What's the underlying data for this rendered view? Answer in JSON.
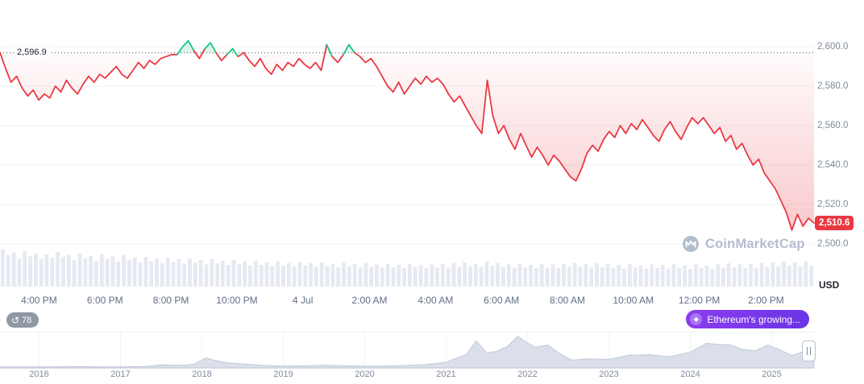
{
  "watermark": {
    "text": "CoinMarketCap"
  },
  "axis": {
    "unit_label": "USD",
    "y_ticks": [
      "2,600.0",
      "2,580.0",
      "2,560.0",
      "2,540.0",
      "2,520.0",
      "2,500.0"
    ],
    "x_ticks": [
      {
        "label": "4:00 PM",
        "pos": 0.048
      },
      {
        "label": "6:00 PM",
        "pos": 0.129
      },
      {
        "label": "8:00 PM",
        "pos": 0.21
      },
      {
        "label": "10:00 PM",
        "pos": 0.291
      },
      {
        "label": "4 Jul",
        "pos": 0.372
      },
      {
        "label": "2:00 AM",
        "pos": 0.454
      },
      {
        "label": "4:00 AM",
        "pos": 0.535
      },
      {
        "label": "6:00 AM",
        "pos": 0.616
      },
      {
        "label": "8:00 AM",
        "pos": 0.697
      },
      {
        "label": "10:00 AM",
        "pos": 0.778
      },
      {
        "label": "12:00 PM",
        "pos": 0.859
      },
      {
        "label": "2:00 PM",
        "pos": 0.941
      }
    ]
  },
  "open_line": {
    "label": "2,596.9"
  },
  "price_badge": {
    "label": "2,510.6"
  },
  "badges": {
    "history_count": "78",
    "news_text": "Ethereum's growing..."
  },
  "colors": {
    "down": "#ea3943",
    "up": "#16c784",
    "grid": "#eff2f5",
    "axis_text": "#808a9d",
    "volume": "#e6e9f2",
    "nav_fill": "#dadfe9",
    "nav_stroke": "#c2c8d8",
    "dotted_line": "#474d59"
  },
  "chart_data": {
    "type": "line",
    "title": "ETH/USD 24-hour price chart",
    "ylabel": "USD",
    "ylim": [
      2496,
      2610
    ],
    "y_ticks": [
      2600,
      2580,
      2560,
      2540,
      2520,
      2500
    ],
    "open_price": 2596.9,
    "last_price": 2510.6,
    "x_range_labels": [
      "4:00 PM",
      "2:00 PM"
    ],
    "series": [
      {
        "name": "price",
        "values": [
          2597,
          2589,
          2582,
          2585,
          2579,
          2575,
          2578,
          2573,
          2576,
          2574,
          2580,
          2577,
          2583,
          2579,
          2576,
          2581,
          2585,
          2582,
          2586,
          2584,
          2587,
          2590,
          2586,
          2584,
          2588,
          2592,
          2589,
          2593,
          2591,
          2594,
          2595,
          2596,
          2596,
          2600,
          2603,
          2598,
          2594,
          2599,
          2602,
          2597,
          2593,
          2596,
          2599,
          2595,
          2597,
          2593,
          2590,
          2594,
          2589,
          2586,
          2591,
          2588,
          2592,
          2590,
          2594,
          2591,
          2589,
          2592,
          2588,
          2601,
          2595,
          2592,
          2596,
          2601,
          2597,
          2595,
          2592,
          2594,
          2590,
          2585,
          2580,
          2577,
          2582,
          2576,
          2580,
          2584,
          2581,
          2585,
          2582,
          2584,
          2581,
          2576,
          2572,
          2575,
          2570,
          2565,
          2560,
          2556,
          2583,
          2565,
          2556,
          2560,
          2553,
          2548,
          2556,
          2550,
          2544,
          2549,
          2545,
          2540,
          2545,
          2542,
          2538,
          2534,
          2532,
          2538,
          2546,
          2550,
          2547,
          2553,
          2557,
          2554,
          2560,
          2556,
          2561,
          2558,
          2563,
          2559,
          2555,
          2552,
          2558,
          2562,
          2557,
          2553,
          2559,
          2564,
          2561,
          2564,
          2560,
          2556,
          2559,
          2552,
          2555,
          2548,
          2551,
          2545,
          2540,
          2543,
          2536,
          2532,
          2528,
          2522,
          2516,
          2507,
          2515,
          2509,
          2513,
          2510.6
        ]
      }
    ],
    "volume_norm": [
      0.92,
      0.78,
      0.85,
      0.7,
      0.88,
      0.75,
      0.82,
      0.68,
      0.8,
      0.72,
      0.86,
      0.74,
      0.79,
      0.66,
      0.83,
      0.71,
      0.77,
      0.64,
      0.81,
      0.69,
      0.75,
      0.62,
      0.78,
      0.66,
      0.72,
      0.6,
      0.74,
      0.63,
      0.7,
      0.58,
      0.72,
      0.61,
      0.68,
      0.57,
      0.7,
      0.59,
      0.66,
      0.55,
      0.68,
      0.57,
      0.64,
      0.54,
      0.66,
      0.56,
      0.62,
      0.52,
      0.64,
      0.54,
      0.6,
      0.51,
      0.62,
      0.52,
      0.59,
      0.5,
      0.61,
      0.52,
      0.58,
      0.49,
      0.6,
      0.51,
      0.57,
      0.48,
      0.59,
      0.5,
      0.56,
      0.48,
      0.58,
      0.49,
      0.55,
      0.47,
      0.57,
      0.48,
      0.54,
      0.46,
      0.56,
      0.48,
      0.53,
      0.46,
      0.55,
      0.47,
      0.56,
      0.47,
      0.58,
      0.49,
      0.6,
      0.5,
      0.57,
      0.48,
      0.62,
      0.52,
      0.58,
      0.49,
      0.55,
      0.47,
      0.57,
      0.48,
      0.54,
      0.46,
      0.56,
      0.47,
      0.55,
      0.46,
      0.57,
      0.48,
      0.59,
      0.49,
      0.56,
      0.47,
      0.58,
      0.48,
      0.56,
      0.47,
      0.54,
      0.45,
      0.56,
      0.47,
      0.53,
      0.45,
      0.55,
      0.46,
      0.54,
      0.45,
      0.56,
      0.47,
      0.53,
      0.44,
      0.55,
      0.46,
      0.52,
      0.44,
      0.56,
      0.47,
      0.58,
      0.48,
      0.55,
      0.46,
      0.57,
      0.47,
      0.59,
      0.49,
      0.61,
      0.51,
      0.63,
      0.52,
      0.6,
      0.5,
      0.62,
      0.52
    ],
    "navigator": {
      "year_labels": [
        2016,
        2017,
        2018,
        2019,
        2020,
        2021,
        2022,
        2023,
        2024,
        2025
      ],
      "x_years": [
        2015.52,
        2016,
        2016.5,
        2017,
        2017.3,
        2017.5,
        2017.75,
        2017.9,
        2018.05,
        2018.15,
        2018.3,
        2018.5,
        2018.75,
        2019,
        2019.3,
        2019.5,
        2019.75,
        2020,
        2020.25,
        2020.5,
        2020.75,
        2021,
        2021.1,
        2021.25,
        2021.37,
        2021.5,
        2021.62,
        2021.75,
        2021.88,
        2022,
        2022.1,
        2022.25,
        2022.4,
        2022.55,
        2022.75,
        2023,
        2023.25,
        2023.5,
        2023.75,
        2024,
        2024.2,
        2024.35,
        2024.5,
        2024.65,
        2024.8,
        2024.95,
        2025.1,
        2025.25,
        2025.4,
        2025.52
      ],
      "values_norm": [
        0.005,
        0.01,
        0.012,
        0.008,
        0.02,
        0.07,
        0.06,
        0.09,
        0.29,
        0.22,
        0.14,
        0.1,
        0.05,
        0.03,
        0.04,
        0.06,
        0.04,
        0.03,
        0.03,
        0.05,
        0.08,
        0.15,
        0.26,
        0.4,
        0.83,
        0.45,
        0.5,
        0.65,
        0.98,
        0.77,
        0.63,
        0.7,
        0.42,
        0.22,
        0.26,
        0.25,
        0.38,
        0.39,
        0.33,
        0.48,
        0.76,
        0.72,
        0.7,
        0.56,
        0.52,
        0.7,
        0.55,
        0.37,
        0.5,
        0.52
      ],
      "x_range": [
        2015.52,
        2025.52
      ]
    }
  }
}
